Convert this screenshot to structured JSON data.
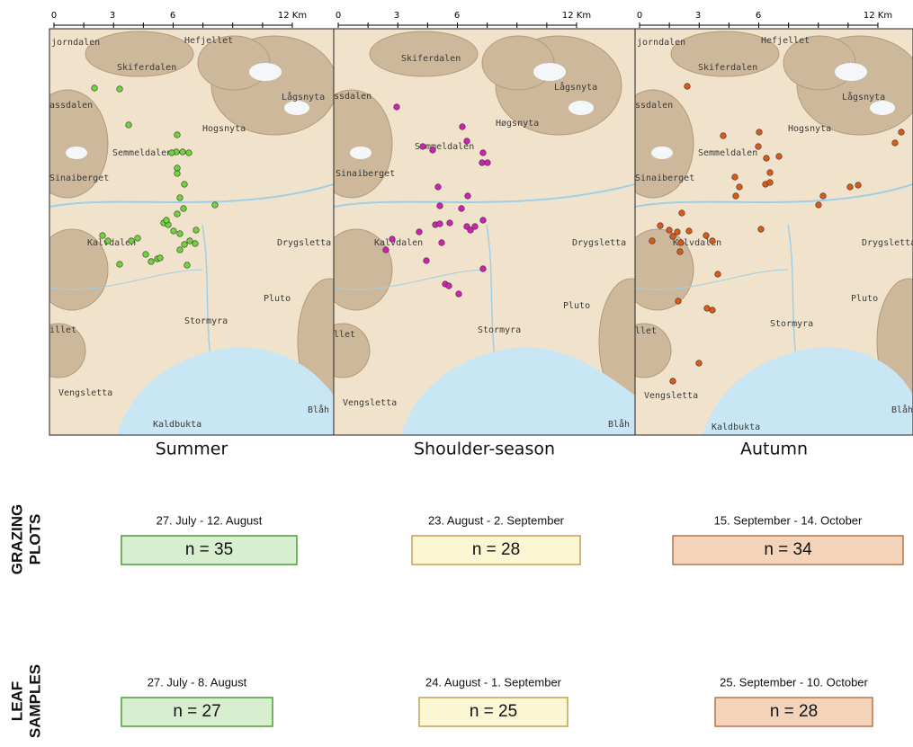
{
  "panels": [
    {
      "scale": [
        "0",
        "3",
        "6",
        "12 Km"
      ],
      "season": "Summer",
      "dot_color": "#6fd33a",
      "box_fill": "#d8efcf",
      "box_stroke": "#4f9a3c",
      "places": [
        "jorndalen",
        "Hefjellet",
        "Skiferdalen",
        "Lågsnyta",
        "assdalen",
        "Hogsnyta",
        "Semmeldalen",
        "Sinaiberget",
        "Kalvdalen",
        "Drygsletta",
        "Pluto",
        "Stormyra",
        "illet",
        "Vengsletta",
        "Kaldbukta",
        "Blåh"
      ]
    },
    {
      "scale": [
        "0",
        "3",
        "6",
        "12 Km"
      ],
      "season": "Shoulder-season",
      "dot_color": "#d21fb4",
      "box_fill": "#fbf7d4",
      "box_stroke": "#c2a24a",
      "places": [
        "Skiferdalen",
        "Lågsnyta",
        "ssdalen",
        "Høgsnyta",
        "Semmeldalen",
        "Sinaiberget",
        "Kalvdalen",
        "Drygsletta",
        "Pluto",
        "Stormyra",
        "llet",
        "Vengsletta",
        "Blåh"
      ]
    },
    {
      "scale": [
        "0",
        "3",
        "6",
        "12 Km"
      ],
      "season": "Autumn",
      "dot_color": "#dc5a18",
      "box_fill": "#f3d4ba",
      "box_stroke": "#b3774b",
      "places": [
        "jorndalen",
        "Hefjellet",
        "Skiferdalen",
        "Lågsnyta",
        "ssdalen",
        "Hogsnyta",
        "Semmeldalen",
        "Sinaiberget",
        "Kalvdalen",
        "Drygsletta",
        "Pluto",
        "Stormyra",
        "llet",
        "Vengsletta",
        "Kaldbukta",
        "Blåh"
      ]
    }
  ],
  "rows": [
    {
      "label": [
        "GRAZING",
        "PLOTS"
      ],
      "entries": [
        {
          "dates": "27. July - 12. August",
          "n": "n = 35"
        },
        {
          "dates": "23. August - 2. September",
          "n": "n = 28"
        },
        {
          "dates": "15. September - 14. October",
          "n": "n = 34"
        }
      ]
    },
    {
      "label": [
        "LEAF",
        "SAMPLES"
      ],
      "entries": [
        {
          "dates": "27. July - 8. August",
          "n": "n = 27"
        },
        {
          "dates": "24. August - 1. September",
          "n": "n = 25"
        },
        {
          "dates": "25. September - 10. October",
          "n": "n = 28"
        }
      ]
    }
  ]
}
